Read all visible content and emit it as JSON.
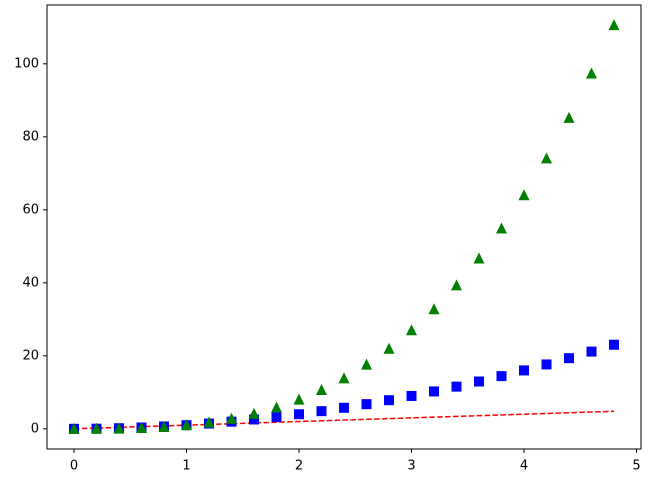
{
  "chart_data": {
    "type": "line",
    "x": [
      0,
      0.2,
      0.4,
      0.6,
      0.8,
      1,
      1.2,
      1.4,
      1.6,
      1.8,
      2,
      2.2,
      2.4,
      2.6,
      2.8,
      3,
      3.2,
      3.4,
      3.6,
      3.8,
      4,
      4.2,
      4.4,
      4.6,
      4.8
    ],
    "series": [
      {
        "color": "#ff0000",
        "linestyle": "dashed",
        "marker": "none",
        "values": [
          0,
          0.2,
          0.4,
          0.6,
          0.8,
          1,
          1.2,
          1.4,
          1.6,
          1.8,
          2,
          2.2,
          2.4,
          2.6,
          2.8,
          3,
          3.2,
          3.4,
          3.6,
          3.8,
          4,
          4.2,
          4.4,
          4.6,
          4.8
        ]
      },
      {
        "color": "#0000ff",
        "linestyle": "none",
        "marker": "square",
        "values": [
          0,
          0.04,
          0.16,
          0.36,
          0.64,
          1,
          1.44,
          1.96,
          2.56,
          3.24,
          4,
          4.84,
          5.76,
          6.76,
          7.84,
          9,
          10.24,
          11.56,
          12.96,
          14.44,
          16,
          17.64,
          19.36,
          21.16,
          23.04
        ]
      },
      {
        "color": "#008000",
        "linestyle": "none",
        "marker": "triangle",
        "values": [
          0,
          0.008,
          0.064,
          0.216,
          0.512,
          1,
          1.728,
          2.744,
          4.096,
          5.832,
          8,
          10.648,
          13.824,
          17.576,
          21.952,
          27,
          32.768,
          39.304,
          46.656,
          54.872,
          64,
          74.088,
          85.184,
          97.336,
          110.592
        ]
      }
    ],
    "xlim": [
      -0.24,
      5.04
    ],
    "xticks": [
      0,
      1,
      2,
      3,
      4,
      5
    ],
    "ylim": [
      -5.53,
      116.12
    ],
    "yticks": [
      0,
      20,
      40,
      60,
      80,
      100
    ],
    "grid": false
  }
}
